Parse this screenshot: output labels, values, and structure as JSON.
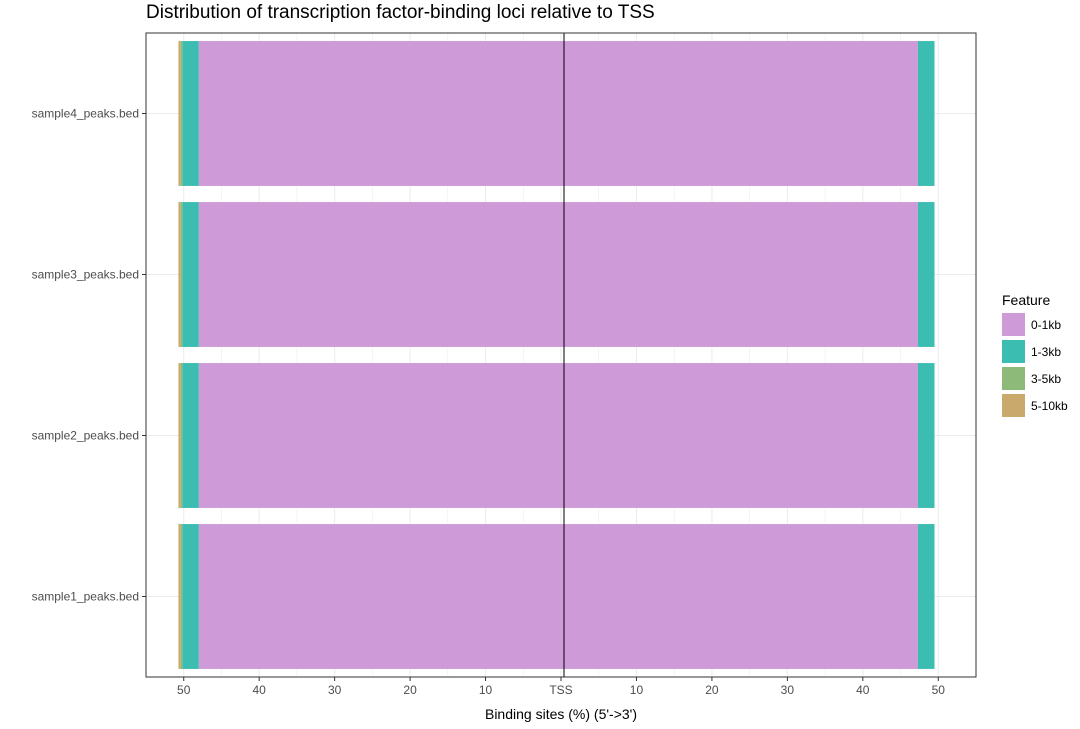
{
  "chart_data": {
    "type": "bar",
    "orientation": "horizontal",
    "stacked": "diverging",
    "title": "Distribution of transcription factor-binding loci relative to TSS",
    "xlabel": "Binding sites (%) (5'->3')",
    "ylabel": "",
    "xlim": [
      -55,
      55
    ],
    "x_ticks": [
      {
        "value": -50,
        "label": "50"
      },
      {
        "value": -40,
        "label": "40"
      },
      {
        "value": -30,
        "label": "30"
      },
      {
        "value": -20,
        "label": "20"
      },
      {
        "value": -10,
        "label": "10"
      },
      {
        "value": 0,
        "label": "TSS"
      },
      {
        "value": 10,
        "label": "10"
      },
      {
        "value": 20,
        "label": "20"
      },
      {
        "value": 30,
        "label": "30"
      },
      {
        "value": 40,
        "label": "40"
      },
      {
        "value": 50,
        "label": "50"
      }
    ],
    "categories": [
      "sample4_peaks.bed",
      "sample3_peaks.bed",
      "sample2_peaks.bed",
      "sample1_peaks.bed"
    ],
    "legend_title": "Feature",
    "legend_position": "right",
    "grid": true,
    "series": [
      {
        "name": "0-1kb",
        "color": "#CE9AD8",
        "upstream": [
          48.0,
          48.0,
          48.0,
          48.0
        ],
        "downstream": [
          47.3,
          47.3,
          47.3,
          47.3
        ]
      },
      {
        "name": "1-3kb",
        "color": "#3BBDB1",
        "upstream": [
          2.2,
          2.2,
          2.2,
          2.2
        ],
        "downstream": [
          2.2,
          2.2,
          2.2,
          2.2
        ]
      },
      {
        "name": "3-5kb",
        "color": "#8DB979",
        "upstream": [
          0.2,
          0.2,
          0.2,
          0.2
        ],
        "downstream": [
          0.0,
          0.0,
          0.0,
          0.0
        ]
      },
      {
        "name": "5-10kb",
        "color": "#C9A96C",
        "upstream": [
          0.3,
          0.3,
          0.3,
          0.3
        ],
        "downstream": [
          0.0,
          0.0,
          0.0,
          0.0
        ]
      }
    ]
  }
}
